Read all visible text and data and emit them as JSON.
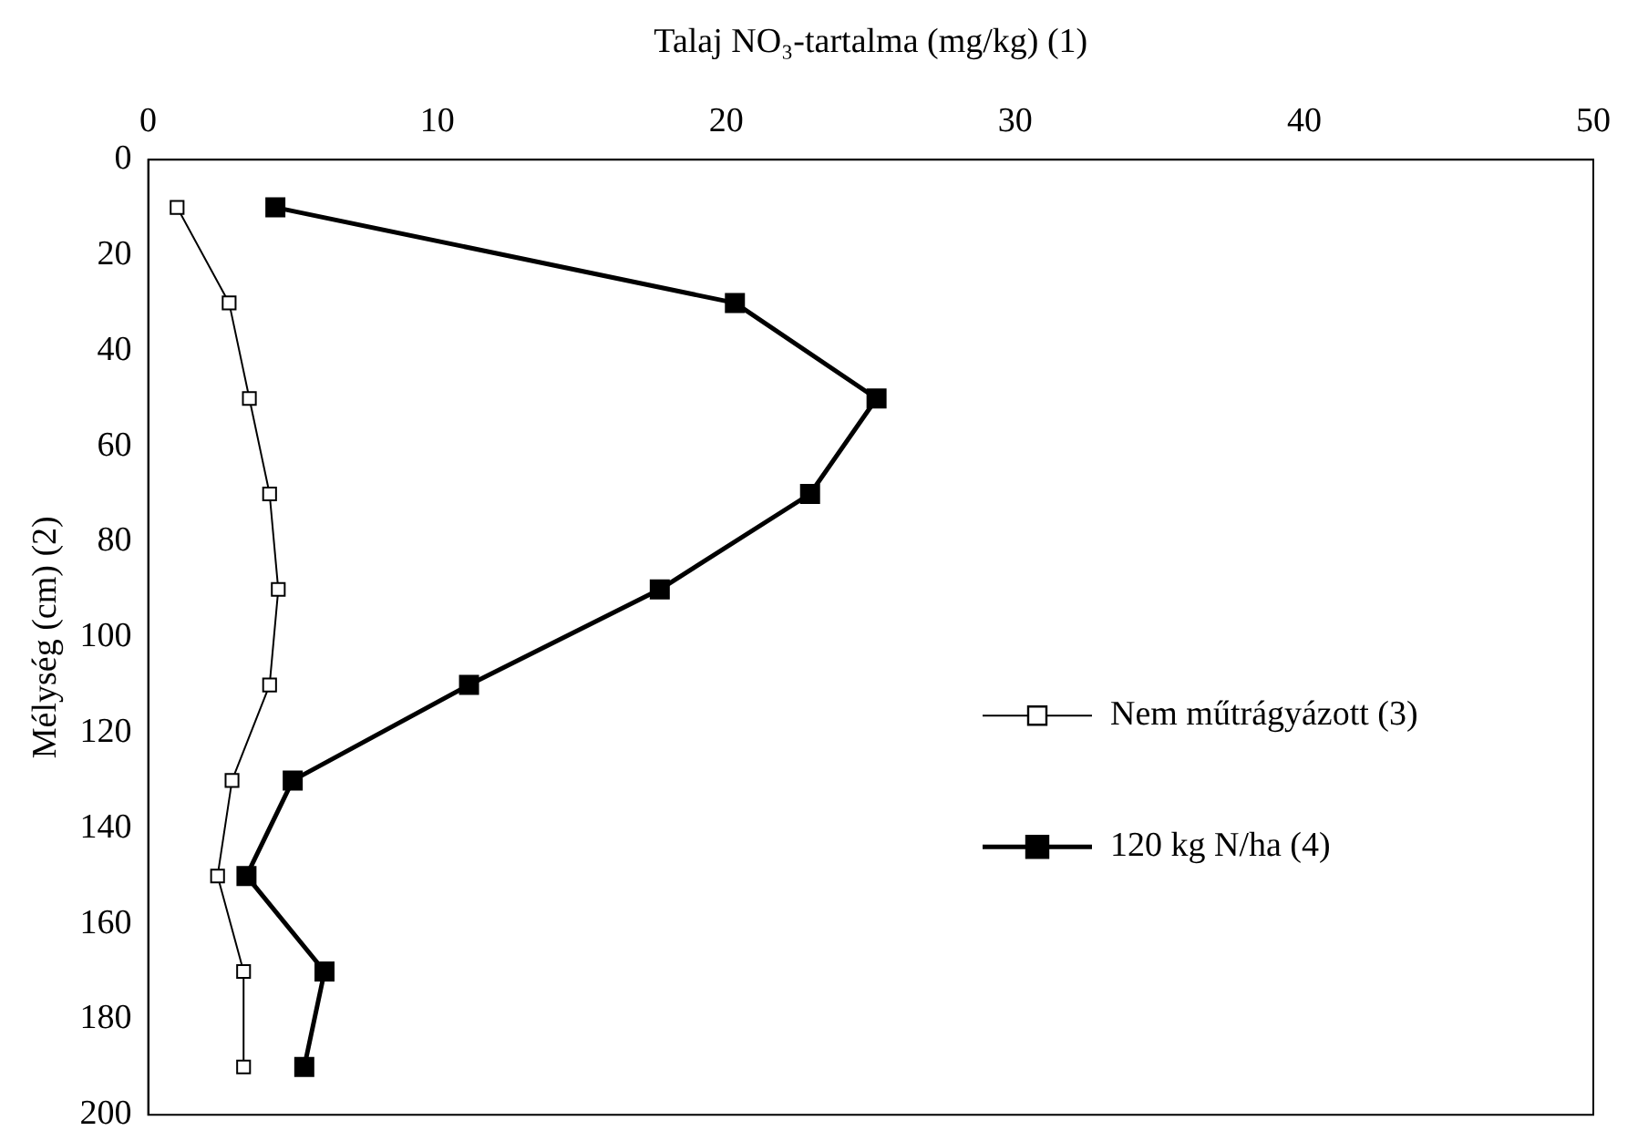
{
  "chart_data": {
    "type": "line",
    "xlabel": "Talaj NO₃-tartalma (mg/kg) (1)",
    "ylabel": "Mélység (cm) (2)",
    "xlim": [
      0,
      50
    ],
    "xticks": [
      0,
      10,
      20,
      30,
      40,
      50
    ],
    "ylim": [
      200,
      0
    ],
    "yticks": [
      0,
      20,
      40,
      60,
      80,
      100,
      120,
      140,
      160,
      180,
      200
    ],
    "grid": false,
    "legend": "right",
    "marker": "square",
    "line_style": "solid",
    "series": [
      {
        "name": "Nem műtrágyázott (3)",
        "color": "#000000",
        "x": [
          1.0,
          2.8,
          3.5,
          4.2,
          4.5,
          4.2,
          2.9,
          2.4,
          3.3,
          3.3
        ],
        "values": [
          10,
          30,
          50,
          70,
          90,
          110,
          130,
          150,
          170,
          190
        ]
      },
      {
        "name": "120 kg N/ha (4)",
        "color": "#000000",
        "x": [
          4.4,
          20.3,
          25.2,
          22.9,
          17.7,
          11.1,
          5.0,
          3.4,
          6.1,
          5.4
        ],
        "values": [
          10,
          30,
          50,
          70,
          90,
          110,
          130,
          150,
          170,
          190
        ]
      }
    ]
  }
}
